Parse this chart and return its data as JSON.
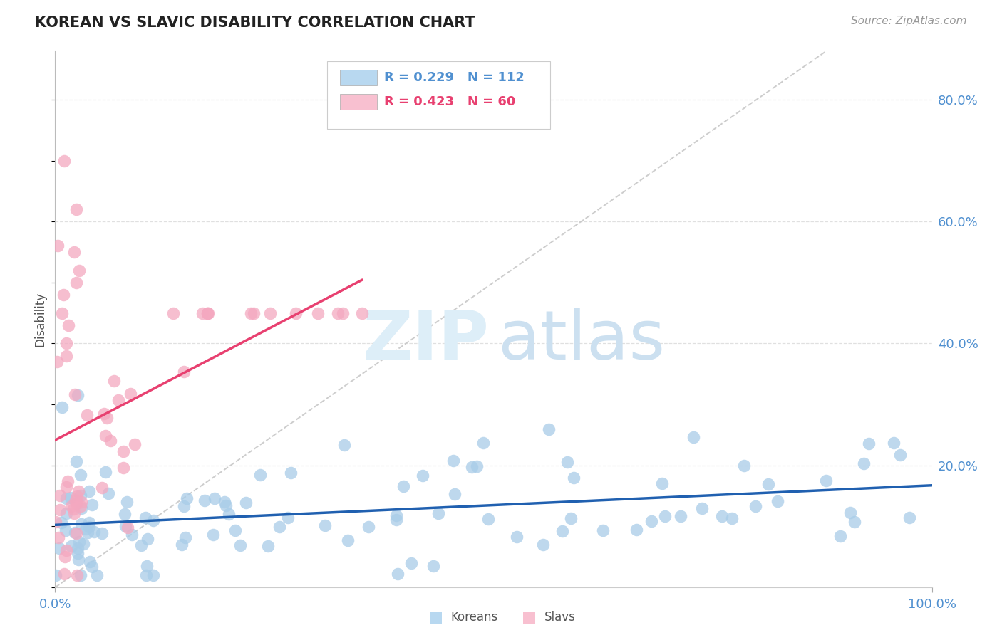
{
  "title": "KOREAN VS SLAVIC DISABILITY CORRELATION CHART",
  "source": "Source: ZipAtlas.com",
  "ylabel": "Disability",
  "y_tick_labels": [
    "80.0%",
    "60.0%",
    "40.0%",
    "20.0%"
  ],
  "y_tick_values": [
    0.8,
    0.6,
    0.4,
    0.2
  ],
  "xlim": [
    0.0,
    1.0
  ],
  "ylim": [
    0.0,
    0.88
  ],
  "korean_R": 0.229,
  "korean_N": 112,
  "slavic_R": 0.423,
  "slavic_N": 60,
  "korean_color": "#a8cce8",
  "slavic_color": "#f4a8c0",
  "korean_line_color": "#2060b0",
  "slavic_line_color": "#e84070",
  "diagonal_color": "#c8c8c8",
  "background_color": "#ffffff",
  "legend_box_color_korean": "#b8d8f0",
  "legend_box_color_slavic": "#f8c0d0",
  "koreans_label": "Koreans",
  "slavs_label": "Slavs",
  "title_color": "#222222",
  "source_color": "#999999",
  "tick_color": "#5090d0",
  "ylabel_color": "#555555",
  "grid_color": "#e0e0e0"
}
